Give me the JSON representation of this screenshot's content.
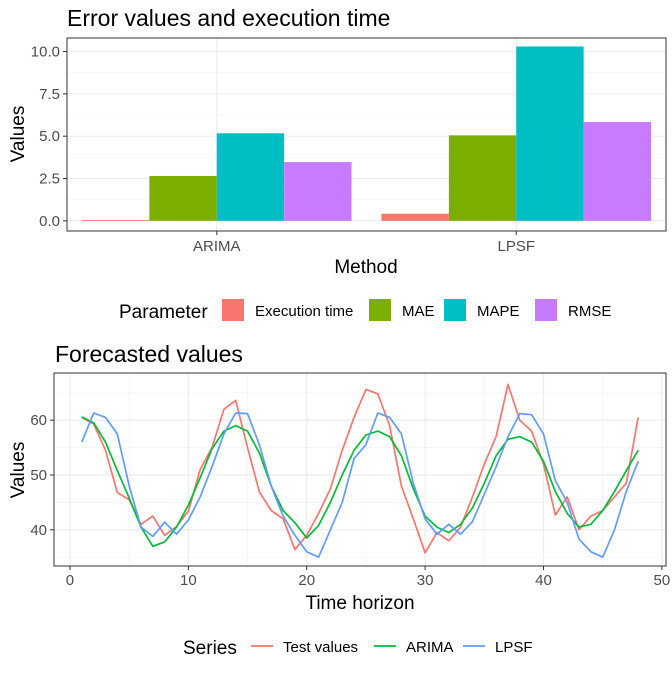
{
  "chart_data": [
    {
      "type": "bar",
      "title": "Error values and execution time",
      "xlabel": "Method",
      "ylabel": "Values",
      "categories": [
        "ARIMA",
        "LPSF"
      ],
      "ylim": [
        -0.6,
        10.8
      ],
      "yticks": [
        0.0,
        2.5,
        5.0,
        7.5,
        10.0
      ],
      "ytick_labels": [
        "0.0",
        "2.5",
        "5.0",
        "7.5",
        "10.0"
      ],
      "grid": true,
      "legend": {
        "title": "Parameter",
        "position": "bottom"
      },
      "series": [
        {
          "name": "Execution time",
          "color": "#F8766D",
          "values": [
            0.05,
            0.42
          ]
        },
        {
          "name": "MAE",
          "color": "#7CAE00",
          "values": [
            2.65,
            5.05
          ]
        },
        {
          "name": "MAPE",
          "color": "#00BFC4",
          "values": [
            5.17,
            10.3
          ]
        },
        {
          "name": "RMSE",
          "color": "#C77CFF",
          "values": [
            3.47,
            5.84
          ]
        }
      ]
    },
    {
      "type": "line",
      "title": "Forecasted values",
      "xlabel": "Time horizon",
      "ylabel": "Values",
      "xlim": [
        -1.35,
        50.35
      ],
      "ylim": [
        33.4,
        68.6
      ],
      "xticks": [
        0,
        10,
        20,
        30,
        40,
        50
      ],
      "yticks": [
        40,
        50,
        60
      ],
      "grid": true,
      "legend": {
        "title": "Series",
        "position": "bottom"
      },
      "x": [
        1,
        2,
        3,
        4,
        5,
        6,
        7,
        8,
        9,
        10,
        11,
        12,
        13,
        14,
        15,
        16,
        17,
        18,
        19,
        20,
        21,
        22,
        23,
        24,
        25,
        26,
        27,
        28,
        29,
        30,
        31,
        32,
        33,
        34,
        35,
        36,
        37,
        38,
        39,
        40,
        41,
        42,
        43,
        44,
        45,
        46,
        47,
        48
      ],
      "series": [
        {
          "name": "Test values",
          "color": "#F8766D",
          "values": [
            60.5,
            59.3,
            54.5,
            46.8,
            45.5,
            41.0,
            42.5,
            39.0,
            40.6,
            43.4,
            51.0,
            55.0,
            62.0,
            63.6,
            55.0,
            46.9,
            43.5,
            42.0,
            36.4,
            39.0,
            43.0,
            47.5,
            54.5,
            60.5,
            65.6,
            64.8,
            59.0,
            48.0,
            42.0,
            35.8,
            39.5,
            38.0,
            40.5,
            46.0,
            52.0,
            57.0,
            66.5,
            60.0,
            58.0,
            52.0,
            42.7,
            46.0,
            40.0,
            42.5,
            43.5,
            46.0,
            48.5,
            60.5
          ]
        },
        {
          "name": "ARIMA",
          "color": "#00BA38",
          "values": [
            60.6,
            59.5,
            56.0,
            50.8,
            45.8,
            40.5,
            37.0,
            37.8,
            40.5,
            44.5,
            49.5,
            54.8,
            58.0,
            59.0,
            58.0,
            54.0,
            48.0,
            43.5,
            41.3,
            38.5,
            40.8,
            45.0,
            50.0,
            54.5,
            57.3,
            58.0,
            57.0,
            53.5,
            47.5,
            42.5,
            40.5,
            39.5,
            41.0,
            44.0,
            48.5,
            53.5,
            56.5,
            57.0,
            56.0,
            52.5,
            47.0,
            43.0,
            40.5,
            41.0,
            43.5,
            47.0,
            50.8,
            54.5
          ]
        },
        {
          "name": "LPSF",
          "color": "#619CFF",
          "values": [
            56.0,
            61.3,
            60.5,
            57.5,
            48.0,
            40.5,
            38.8,
            41.4,
            39.2,
            41.8,
            46.0,
            51.5,
            57.5,
            61.3,
            61.2,
            55.5,
            48.0,
            42.5,
            39.0,
            36.0,
            35.0,
            40.0,
            45.0,
            53.0,
            55.5,
            61.3,
            60.5,
            57.5,
            48.5,
            42.0,
            39.2,
            41.0,
            39.2,
            41.5,
            46.5,
            51.5,
            57.0,
            61.2,
            61.0,
            57.5,
            49.0,
            45.0,
            38.3,
            36.0,
            35.0,
            40.0,
            47.0,
            52.5
          ]
        }
      ]
    }
  ]
}
